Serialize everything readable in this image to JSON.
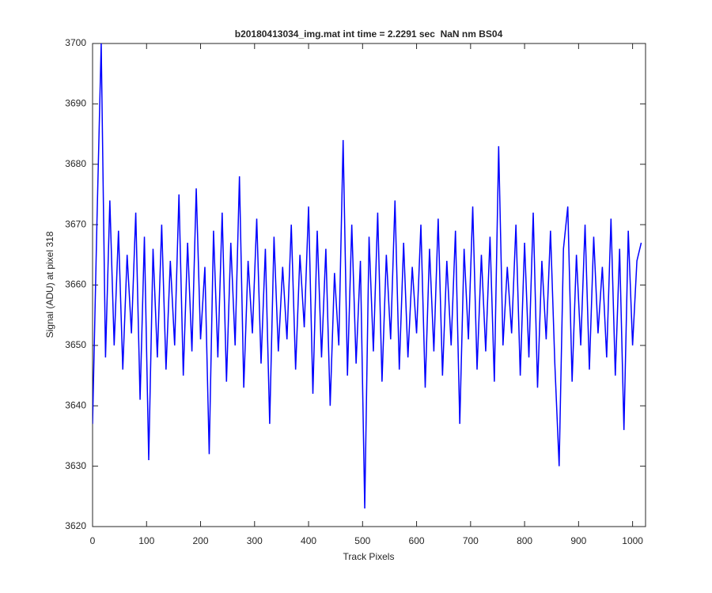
{
  "chart_data": {
    "type": "line",
    "title": "b20180413034_img.mat int time = 2.2291 sec  NaN nm BS04",
    "x_label": "Track Pixels",
    "y_label": "Signal (ADU) at pixel 318",
    "color": "#0000ff",
    "xlim": [
      0,
      1024
    ],
    "ylim": [
      3620,
      3700
    ],
    "xticks": [
      0,
      100,
      200,
      300,
      400,
      500,
      600,
      700,
      800,
      900,
      1000
    ],
    "yticks": [
      3620,
      3630,
      3640,
      3650,
      3660,
      3670,
      3680,
      3690,
      3700
    ],
    "grid": false,
    "x": [
      0,
      8,
      16,
      24,
      32,
      40,
      48,
      56,
      64,
      72,
      80,
      88,
      96,
      104,
      112,
      120,
      128,
      136,
      144,
      152,
      160,
      168,
      176,
      184,
      192,
      200,
      208,
      216,
      224,
      232,
      240,
      248,
      256,
      264,
      272,
      280,
      288,
      296,
      304,
      312,
      320,
      328,
      336,
      344,
      352,
      360,
      368,
      376,
      384,
      392,
      400,
      408,
      416,
      424,
      432,
      440,
      448,
      456,
      464,
      472,
      480,
      488,
      496,
      504,
      512,
      520,
      528,
      536,
      544,
      552,
      560,
      568,
      576,
      584,
      592,
      600,
      608,
      616,
      624,
      632,
      640,
      648,
      656,
      664,
      672,
      680,
      688,
      696,
      704,
      712,
      720,
      728,
      736,
      744,
      752,
      760,
      768,
      776,
      784,
      792,
      800,
      808,
      816,
      824,
      832,
      840,
      848,
      856,
      864,
      872,
      880,
      888,
      896,
      904,
      912,
      920,
      928,
      936,
      944,
      952,
      960,
      968,
      976,
      984,
      992,
      1000,
      1008,
      1016
    ],
    "values": [
      3637,
      3670,
      3700,
      3648,
      3674,
      3650,
      3669,
      3646,
      3665,
      3652,
      3672,
      3641,
      3668,
      3631,
      3666,
      3648,
      3670,
      3646,
      3664,
      3650,
      3675,
      3645,
      3667,
      3649,
      3676,
      3651,
      3663,
      3632,
      3669,
      3648,
      3672,
      3644,
      3667,
      3650,
      3678,
      3643,
      3664,
      3652,
      3671,
      3647,
      3666,
      3637,
      3668,
      3649,
      3663,
      3651,
      3670,
      3646,
      3665,
      3653,
      3673,
      3642,
      3669,
      3648,
      3666,
      3640,
      3662,
      3650,
      3684,
      3645,
      3670,
      3647,
      3664,
      3623,
      3668,
      3649,
      3672,
      3644,
      3665,
      3651,
      3674,
      3646,
      3667,
      3648,
      3663,
      3652,
      3670,
      3643,
      3666,
      3649,
      3671,
      3645,
      3664,
      3650,
      3669,
      3637,
      3666,
      3651,
      3673,
      3646,
      3665,
      3649,
      3668,
      3644,
      3683,
      3650,
      3663,
      3652,
      3670,
      3645,
      3667,
      3648,
      3672,
      3643,
      3664,
      3651,
      3669,
      3647,
      3630,
      3666,
      3673,
      3644,
      3665,
      3650,
      3670,
      3646,
      3668,
      3652,
      3663,
      3648,
      3671,
      3645,
      3666,
      3636,
      3669,
      3650,
      3664,
      3667
    ]
  }
}
